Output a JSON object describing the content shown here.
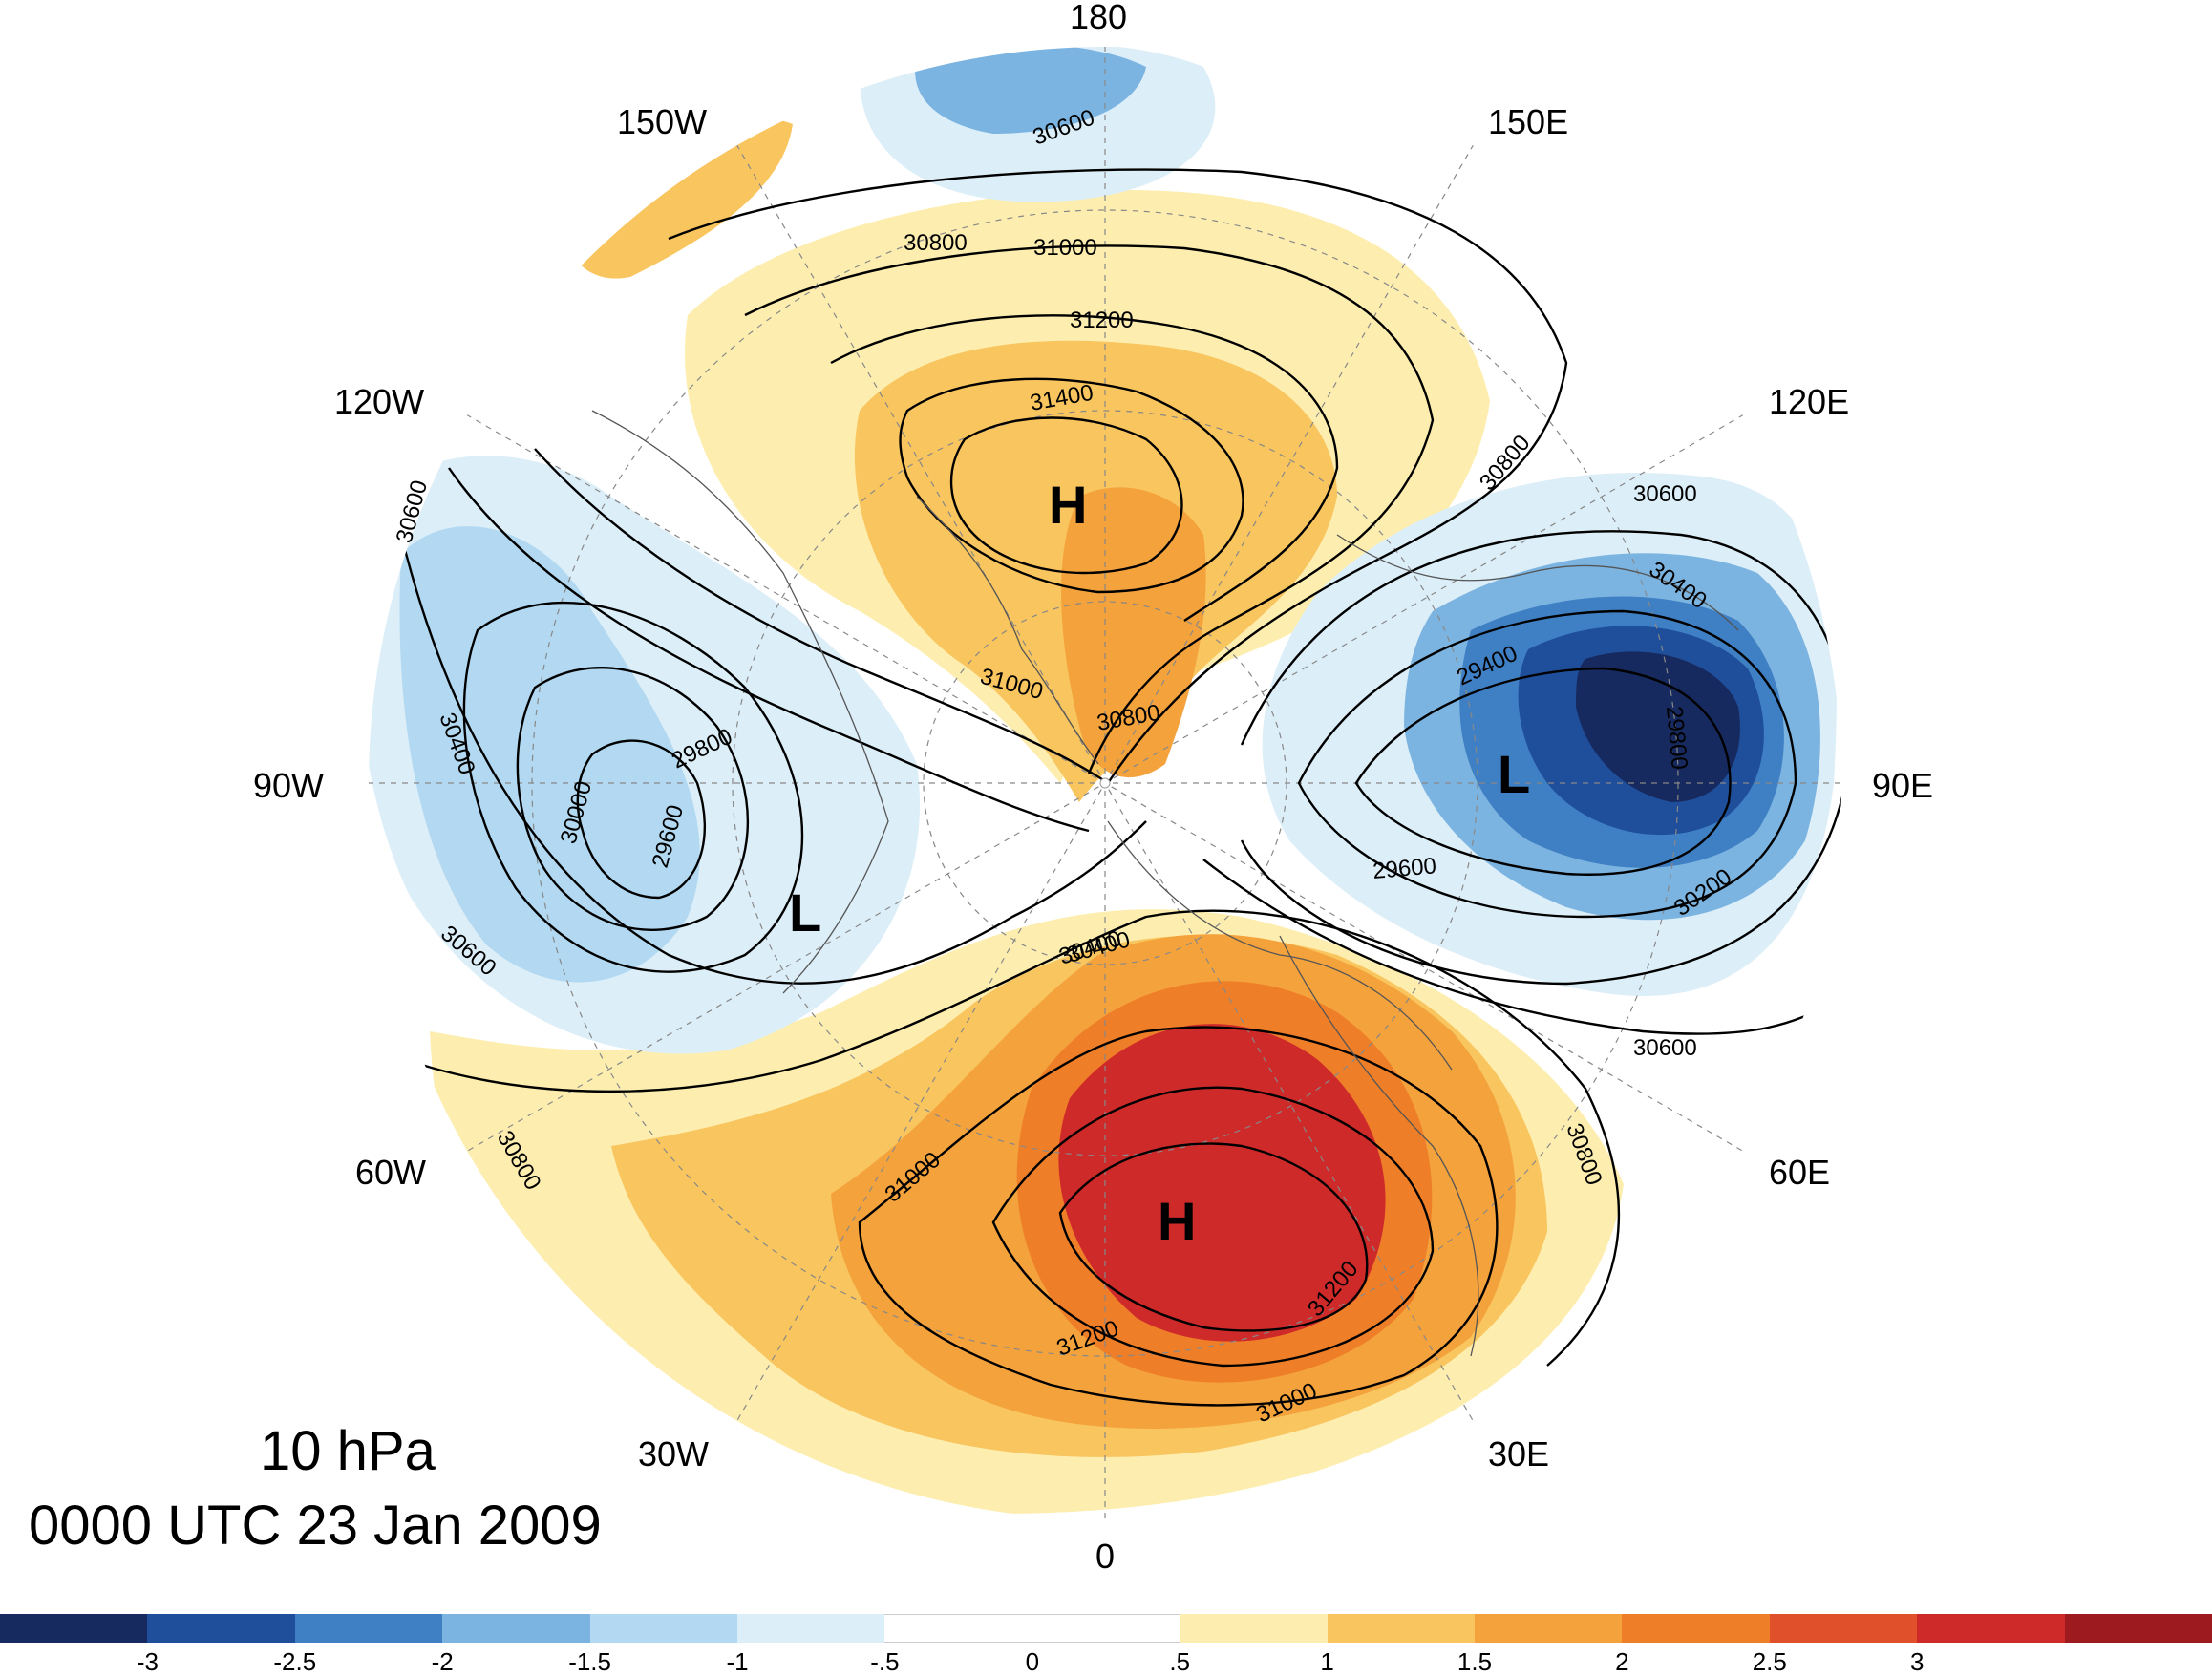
{
  "title": {
    "level": "10 hPa",
    "time": "0000 UTC 23 Jan 2009"
  },
  "longitude_labels": [
    "180",
    "150E",
    "120E",
    "90E",
    "60E",
    "30E",
    "0",
    "30W",
    "60W",
    "90W",
    "120W",
    "150W"
  ],
  "pressure_centers": [
    {
      "label": "H",
      "name": "high-pressure-pacific"
    },
    {
      "label": "H",
      "name": "high-pressure-europe"
    },
    {
      "label": "L",
      "name": "low-pressure-north-america"
    },
    {
      "label": "L",
      "name": "low-pressure-siberia"
    }
  ],
  "contour_labels": [
    "30600",
    "30800",
    "31000",
    "31200",
    "31400",
    "31000",
    "30800",
    "30600",
    "30400",
    "29800",
    "29600",
    "30000",
    "30400",
    "30600",
    "30600",
    "30800",
    "30400",
    "29400",
    "29800",
    "29600",
    "30200",
    "30600",
    "30400",
    "30800",
    "31000",
    "31200",
    "31200",
    "31000",
    "30800"
  ],
  "colorbar": {
    "colors": [
      "#172a5f",
      "#1f4e9b",
      "#3f7fc3",
      "#7cb4e1",
      "#b2d9f1",
      "#dceef8",
      "#ffffff",
      "#ffffff",
      "#fdeeb0",
      "#f9c55e",
      "#f4a23c",
      "#ee7f28",
      "#e0502b",
      "#cf2a2a",
      "#9d1b1f"
    ],
    "tick_labels": [
      "-3",
      "-2.5",
      "-2",
      "-1.5",
      "-1",
      "-.5",
      "0",
      ".5",
      "1",
      "1.5",
      "2",
      "2.5",
      "3"
    ]
  }
}
